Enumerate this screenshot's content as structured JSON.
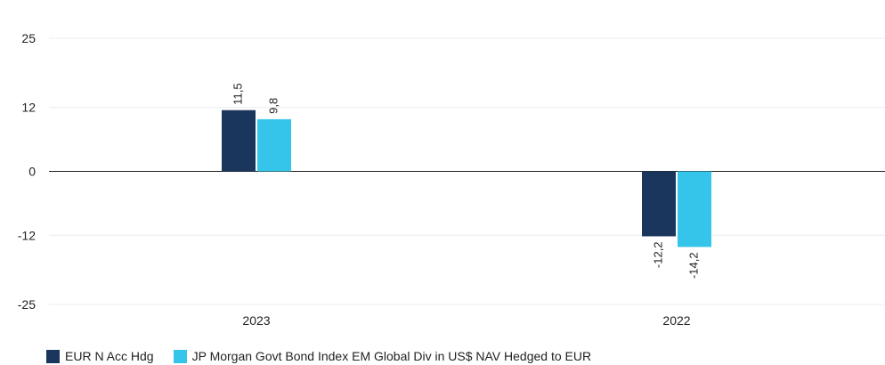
{
  "chart_data": {
    "type": "bar",
    "categories": [
      "2023",
      "2022"
    ],
    "series": [
      {
        "name": "EUR N Acc Hdg",
        "values": [
          11.5,
          -12.2
        ],
        "value_labels": [
          "11,5",
          "-12,2"
        ],
        "color": "#1b365d"
      },
      {
        "name": "JP Morgan Govt Bond Index EM Global Div in US$ NAV Hedged to EUR",
        "values": [
          9.8,
          -14.2
        ],
        "value_labels": [
          "9,8",
          "-14,2"
        ],
        "color": "#36c5ea"
      }
    ],
    "y_ticks": [
      25,
      12,
      0,
      -12,
      -25
    ],
    "ylim": [
      -25,
      25
    ],
    "grid": true,
    "legend_position": "bottom-left"
  }
}
